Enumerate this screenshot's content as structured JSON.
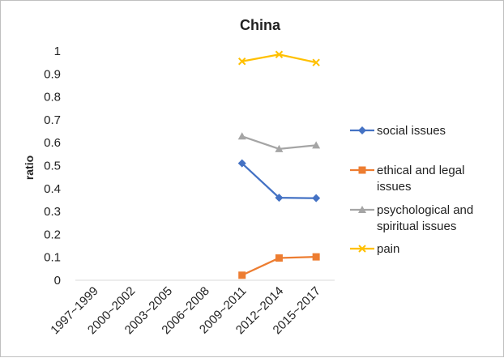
{
  "chart_data": {
    "type": "line",
    "title": "China",
    "xlabel": "",
    "ylabel": "ratio",
    "categories": [
      "1997~1999",
      "2000~2002",
      "2003~2005",
      "2006~2008",
      "2009~2011",
      "2012~2014",
      "2015~2017"
    ],
    "ylim": [
      0,
      1
    ],
    "yticks": [
      "0",
      "0.1",
      "0.2",
      "0.3",
      "0.4",
      "0.5",
      "0.6",
      "0.7",
      "0.8",
      "0.9",
      "1"
    ],
    "grid": false,
    "legend_position": "right",
    "series": [
      {
        "name": "social issues",
        "values": [
          null,
          null,
          null,
          null,
          0.51,
          0.36,
          0.358
        ],
        "color": "#4472C4",
        "marker": "diamond"
      },
      {
        "name": "ethical and legal issues",
        "values": [
          null,
          null,
          null,
          null,
          0.022,
          0.097,
          0.102
        ],
        "color": "#ED7D31",
        "marker": "square"
      },
      {
        "name": "psychological and spiritual issues",
        "values": [
          null,
          null,
          null,
          null,
          0.628,
          0.573,
          0.589
        ],
        "color": "#A5A5A5",
        "marker": "triangle"
      },
      {
        "name": "pain",
        "values": [
          null,
          null,
          null,
          null,
          0.955,
          0.985,
          0.95
        ],
        "color": "#FFC000",
        "marker": "x"
      }
    ]
  }
}
